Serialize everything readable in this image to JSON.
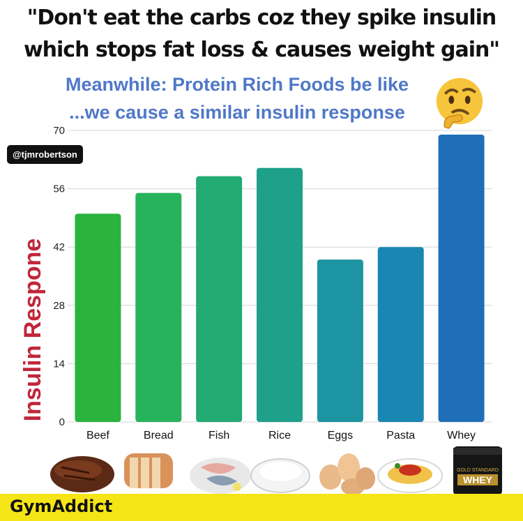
{
  "headline": {
    "line1": "\"Don't eat the carbs coz they spike insulin",
    "line2": "which stops fat loss & causes weight gain\""
  },
  "subheadline": {
    "line1": "Meanwhile: Protein Rich Foods be like",
    "line2": "...we cause a similar insulin response"
  },
  "handle": "@tjmrobertson",
  "brand": "GymAddict",
  "emoji": "thinking-face-icon",
  "product_label": "WHEY",
  "product_sublabel": "GOLD STANDARD",
  "colors": {
    "headline": "#111111",
    "subheadline": "#4f78c8",
    "ylabel": "#c0263a",
    "footer": "#f5e516",
    "bars": [
      "#2ab43f",
      "#27b35c",
      "#22ab73",
      "#1ea08a",
      "#1c94a2",
      "#1a86b2",
      "#1f6fb8"
    ]
  },
  "chart_data": {
    "type": "bar",
    "categories": [
      "Beef",
      "Bread",
      "Fish",
      "Rice",
      "Eggs",
      "Pasta",
      "Whey"
    ],
    "values": [
      50,
      55,
      59,
      61,
      39,
      42,
      69
    ],
    "ylabel": "Insulin Respone",
    "xlabel": "",
    "ylim": [
      0,
      70
    ],
    "yticks": [
      0,
      14,
      28,
      42,
      56,
      70
    ],
    "grid": true
  }
}
